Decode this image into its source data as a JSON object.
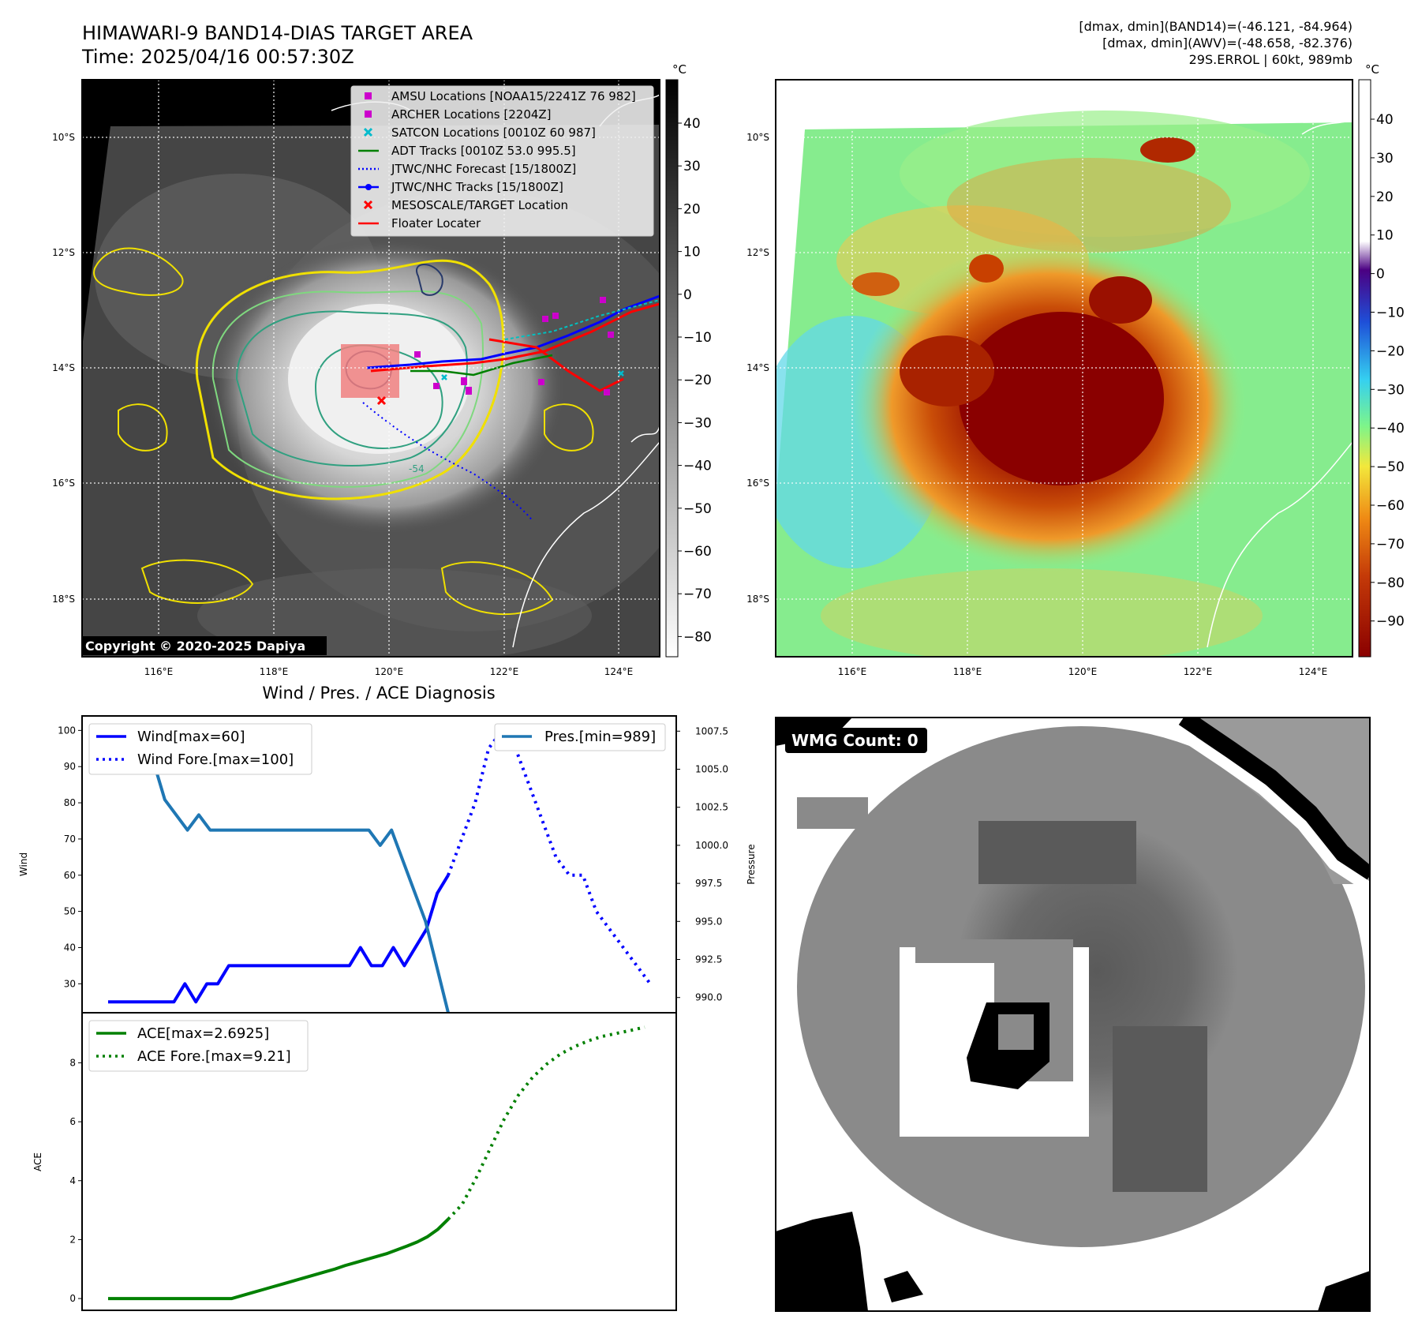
{
  "header": {
    "title": "HIMAWARI-9 BAND14-DIAS TARGET AREA",
    "time": "Time: 2025/04/16 00:57:30Z",
    "info_line1": "[dmax, dmin](BAND14)=(-46.121, -84.964)",
    "info_line2": "[dmax, dmin](AWV)=(-48.658, -82.376)",
    "info_line3": "29S.ERROL | 60kt, 989mb"
  },
  "map": {
    "lat_labels": [
      "10°S",
      "12°S",
      "14°S",
      "16°S",
      "18°S"
    ],
    "lon_labels": [
      "116°E",
      "118°E",
      "120°E",
      "122°E",
      "124°E"
    ],
    "copyright": "Copyright © 2020-2025 Dapiya",
    "contour_label": "-54",
    "colorbar_unit": "°C",
    "gray_colorbar_ticks": [
      "40",
      "30",
      "20",
      "10",
      "0",
      "−10",
      "−20",
      "−30",
      "−40",
      "−50",
      "−60",
      "−70",
      "−80"
    ],
    "color_colorbar_ticks": [
      "40",
      "30",
      "20",
      "10",
      "0",
      "−10",
      "−20",
      "−30",
      "−40",
      "−50",
      "−60",
      "−70",
      "−80",
      "−90"
    ],
    "legend": [
      {
        "label": "AMSU Locations [NOAA15/2241Z 76 982]",
        "icon": "magenta-square",
        "color": "#cc00cc"
      },
      {
        "label": "ARCHER Locations [2204Z]",
        "icon": "magenta-square",
        "color": "#cc00cc"
      },
      {
        "label": "SATCON Locations [0010Z 60 987]",
        "icon": "cyan-x",
        "color": "#00bbcc"
      },
      {
        "label": "ADT Tracks [0010Z 53.0 995.5]",
        "icon": "green-line",
        "color": "#008000"
      },
      {
        "label": "JTWC/NHC Forecast [15/1800Z]",
        "icon": "blue-dotted-line",
        "color": "#0000ff"
      },
      {
        "label": "JTWC/NHC Tracks [15/1800Z]",
        "icon": "blue-line-dot",
        "color": "#0000ff"
      },
      {
        "label": "MESOSCALE/TARGET Location",
        "icon": "red-x",
        "color": "#ff0000"
      },
      {
        "label": "Floater Locater",
        "icon": "red-line",
        "color": "#ff0000"
      }
    ]
  },
  "wmg": {
    "label": "WMG Count: 0"
  },
  "chart_data": [
    {
      "type": "line",
      "title": "Wind / Pres. / ACE Diagnosis",
      "ylabel": "Wind",
      "ylim": [
        22,
        104
      ],
      "yticks": [
        30,
        40,
        50,
        60,
        70,
        80,
        90,
        100
      ],
      "series": [
        {
          "name": "Wind[max=60]",
          "style": "solid",
          "color": "#0000ff",
          "values": [
            25,
            25,
            25,
            25,
            25,
            25,
            25,
            30,
            25,
            30,
            30,
            35,
            35,
            35,
            35,
            35,
            35,
            35,
            35,
            35,
            35,
            35,
            35,
            40,
            35,
            35,
            40,
            35,
            40,
            45,
            55,
            60
          ]
        },
        {
          "name": "Wind Fore.[max=100]",
          "style": "dotted",
          "color": "#0000ff",
          "values": [
            60,
            70,
            80,
            95,
            100,
            95,
            85,
            75,
            65,
            60,
            60,
            50,
            45,
            40,
            35,
            30
          ]
        }
      ]
    },
    {
      "type": "line",
      "ylabel": "Pressure",
      "ylim": [
        989,
        1008.5
      ],
      "yticks": [
        "990.0",
        "992.5",
        "995.0",
        "997.5",
        "1000.0",
        "1002.5",
        "1005.0",
        "1007.5"
      ],
      "series": [
        {
          "name": "Pres.[min=989]",
          "style": "solid",
          "color": "#1f77b4",
          "values": [
            1007.5,
            1006.5,
            1006.5,
            1005.5,
            1005.5,
            1003,
            1002,
            1001,
            1002,
            1001,
            1001,
            1001,
            1001,
            1001,
            1001,
            1001,
            1001,
            1001,
            1001,
            1001,
            1001,
            1001,
            1001,
            1001,
            1000,
            1001,
            999,
            997,
            995,
            992,
            989
          ]
        }
      ]
    },
    {
      "type": "line",
      "ylabel": "ACE",
      "ylim": [
        -0.4,
        9.7
      ],
      "yticks": [
        0,
        2,
        4,
        6,
        8
      ],
      "series": [
        {
          "name": "ACE[max=2.6925]",
          "style": "solid",
          "color": "#008000",
          "values": [
            0,
            0,
            0,
            0,
            0,
            0,
            0,
            0,
            0,
            0,
            0,
            0,
            0,
            0.1,
            0.2,
            0.3,
            0.4,
            0.5,
            0.6,
            0.7,
            0.8,
            0.9,
            1.0,
            1.12,
            1.22,
            1.32,
            1.42,
            1.52,
            1.65,
            1.78,
            1.92,
            2.1,
            2.35,
            2.6925
          ]
        },
        {
          "name": "ACE Fore.[max=9.21]",
          "style": "dotted",
          "color": "#008000",
          "values": [
            2.6925,
            3.2,
            4.1,
            5.1,
            6.1,
            6.9,
            7.5,
            7.95,
            8.3,
            8.55,
            8.75,
            8.9,
            9.0,
            9.1,
            9.21
          ]
        }
      ]
    }
  ]
}
